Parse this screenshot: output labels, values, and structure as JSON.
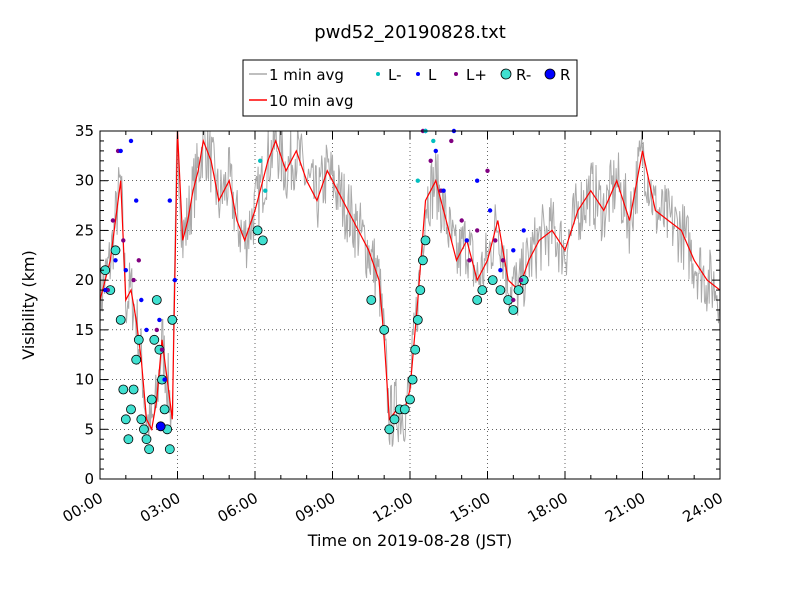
{
  "chart_data": {
    "type": "line",
    "title": "pwd52_20190828.txt",
    "xlabel": "Time on 2019-08-28 (JST)",
    "ylabel": "Visibility (km)",
    "xlim": [
      0,
      24
    ],
    "ylim": [
      0,
      35
    ],
    "x_unit": "hours",
    "x_ticks": [
      0,
      3,
      6,
      9,
      12,
      15,
      18,
      21,
      24
    ],
    "x_tick_labels": [
      "00:00",
      "03:00",
      "06:00",
      "09:00",
      "12:00",
      "15:00",
      "18:00",
      "21:00",
      "24:00"
    ],
    "y_ticks": [
      0,
      5,
      10,
      15,
      20,
      25,
      30,
      35
    ],
    "y_tick_labels": [
      "0",
      "5",
      "10",
      "15",
      "20",
      "25",
      "30",
      "35"
    ],
    "grid": true,
    "legend_position": "top-center",
    "legend": {
      "one_min": "1 min avg",
      "ten_min": "10 min avg",
      "l_minus": "L-",
      "l": "L",
      "l_plus": "L+",
      "r_minus": "R-",
      "r": "R"
    },
    "colors": {
      "one_min": "#aaaaaa",
      "ten_min": "#ff0000",
      "l_minus": "#00bfbf",
      "l": "#0000ff",
      "l_plus": "#800080",
      "r_minus": "#40e0d0",
      "r": "#0000ff"
    },
    "series": [
      {
        "name": "10 min avg",
        "x": [
          0,
          0.2,
          0.4,
          0.6,
          0.8,
          1.0,
          1.2,
          1.4,
          1.6,
          1.8,
          2.0,
          2.2,
          2.4,
          2.6,
          2.8,
          3.0,
          3.2,
          3.4,
          3.6,
          3.8,
          4.0,
          4.3,
          4.6,
          5.0,
          5.3,
          5.6,
          6.0,
          6.2,
          6.5,
          6.8,
          7.2,
          7.6,
          8.0,
          8.4,
          8.8,
          9.2,
          9.6,
          10.0,
          10.4,
          10.8,
          11.0,
          11.2,
          11.5,
          11.8,
          12.0,
          12.3,
          12.6,
          13.0,
          13.4,
          13.8,
          14.2,
          14.6,
          15.0,
          15.4,
          15.8,
          16.2,
          16.6,
          17.0,
          17.5,
          18.0,
          18.5,
          19.0,
          19.5,
          20.0,
          20.5,
          21.0,
          21.5,
          22.0,
          22.5,
          23.0,
          23.5,
          24.0
        ],
        "y": [
          18,
          20,
          22,
          26,
          30,
          18,
          19,
          16,
          12,
          6,
          5,
          8,
          14,
          10,
          6,
          35,
          24,
          26,
          29,
          31,
          34,
          32,
          28,
          30,
          26,
          24,
          27,
          29,
          32,
          34,
          31,
          33,
          30,
          28,
          31,
          29,
          27,
          25,
          23,
          20,
          14,
          6,
          7,
          7,
          9,
          18,
          28,
          30,
          26,
          22,
          24,
          20,
          22,
          26,
          20,
          19,
          22,
          24,
          25,
          23,
          27,
          29,
          27,
          30,
          26,
          33,
          27,
          26,
          25,
          22,
          20,
          19
        ]
      },
      {
        "name": "R-",
        "x": [
          0.2,
          0.4,
          0.6,
          0.8,
          0.9,
          1.0,
          1.1,
          1.2,
          1.3,
          1.4,
          1.5,
          1.6,
          1.7,
          1.8,
          1.9,
          2.0,
          2.1,
          2.2,
          2.3,
          2.4,
          2.5,
          2.6,
          2.7,
          2.8,
          6.1,
          6.3,
          10.5,
          11.0,
          11.2,
          11.4,
          11.6,
          11.8,
          12.0,
          12.1,
          12.2,
          12.3,
          12.4,
          12.5,
          12.6,
          14.6,
          14.8,
          15.2,
          15.5,
          15.8,
          16.0,
          16.2,
          16.4
        ],
        "y": [
          21,
          19,
          23,
          16,
          9,
          6,
          4,
          7,
          9,
          12,
          14,
          6,
          5,
          4,
          3,
          8,
          14,
          18,
          13,
          10,
          7,
          5,
          3,
          16,
          25,
          24,
          18,
          15,
          5,
          6,
          7,
          7,
          8,
          10,
          13,
          16,
          19,
          22,
          24,
          18,
          19,
          20,
          19,
          18,
          17,
          19,
          20
        ]
      },
      {
        "name": "L+",
        "x": [
          0.3,
          0.5,
          0.7,
          0.9,
          1.3,
          1.5,
          2.2,
          2.4,
          12.5,
          12.8,
          13.2,
          13.6,
          14.0,
          14.3,
          14.6,
          15.0,
          15.3,
          15.6,
          16.0,
          16.3
        ],
        "y": [
          19,
          26,
          33,
          24,
          20,
          22,
          15,
          13,
          35,
          32,
          29,
          34,
          26,
          22,
          25,
          31,
          24,
          22,
          18,
          20
        ]
      },
      {
        "name": "L",
        "x": [
          0.2,
          0.6,
          0.8,
          1.0,
          1.2,
          1.4,
          1.6,
          1.8,
          2.3,
          2.5,
          2.7,
          2.9,
          12.6,
          13.0,
          13.3,
          13.7,
          14.2,
          14.6,
          15.1,
          15.5,
          16.0,
          16.4
        ],
        "y": [
          19,
          22,
          33,
          21,
          34,
          28,
          18,
          15,
          16,
          10,
          28,
          20,
          35,
          33,
          29,
          35,
          24,
          30,
          27,
          21,
          23,
          25
        ]
      },
      {
        "name": "L-",
        "x": [
          6.2,
          6.4,
          12.3,
          12.6,
          12.9
        ],
        "y": [
          32,
          29,
          30,
          35,
          34
        ]
      },
      {
        "name": "R",
        "x": [
          2.35
        ],
        "y": [
          5.3
        ]
      }
    ]
  }
}
